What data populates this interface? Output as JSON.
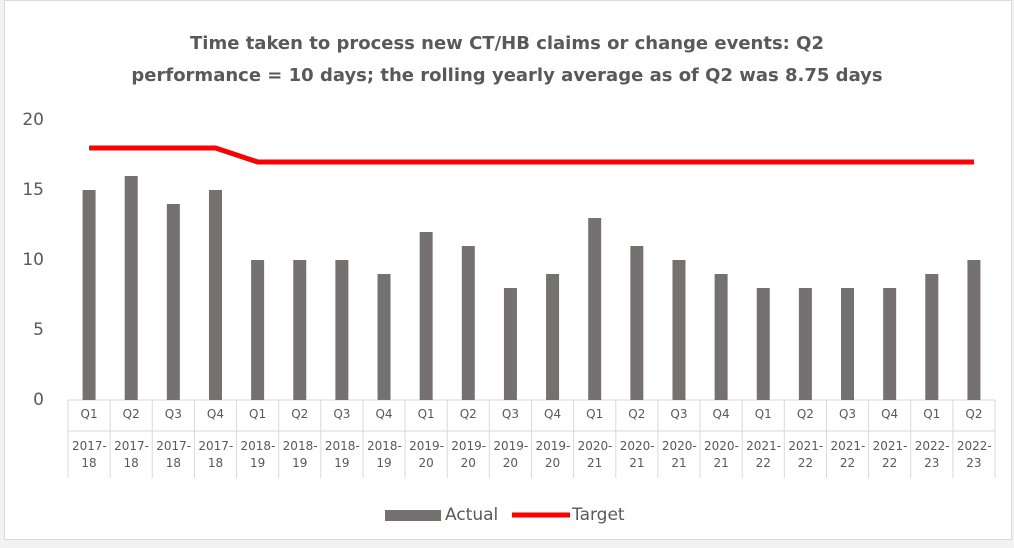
{
  "chart_data": {
    "type": "bar",
    "title": "Time taken to process new CT/HB claims or change events: Q2\nperformance = 10 days; the rolling yearly average as of Q2 was 8.75 days",
    "categories": [
      "Q1",
      "Q2",
      "Q3",
      "Q4",
      "Q1",
      "Q2",
      "Q3",
      "Q4",
      "Q1",
      "Q2",
      "Q3",
      "Q4",
      "Q1",
      "Q2",
      "Q3",
      "Q4",
      "Q1",
      "Q2",
      "Q3",
      "Q4",
      "Q1",
      "Q2"
    ],
    "category_groups": [
      "2017-18",
      "2017-18",
      "2017-18",
      "2017-18",
      "2018-19",
      "2018-19",
      "2018-19",
      "2018-19",
      "2019-20",
      "2019-20",
      "2019-20",
      "2019-20",
      "2020-21",
      "2020-21",
      "2020-21",
      "2020-21",
      "2021-22",
      "2021-22",
      "2021-22",
      "2021-22",
      "2022-23",
      "2022-23"
    ],
    "series": [
      {
        "name": "Actual",
        "type": "bar",
        "color": "#767171",
        "values": [
          15,
          16,
          14,
          15,
          10,
          10,
          10,
          9,
          12,
          11,
          8,
          9,
          13,
          11,
          10,
          9,
          8,
          8,
          8,
          8,
          9,
          10
        ]
      },
      {
        "name": "Target",
        "type": "line",
        "color": "#ff0000",
        "values": [
          18,
          18,
          18,
          18,
          17,
          17,
          17,
          17,
          17,
          17,
          17,
          17,
          17,
          17,
          17,
          17,
          17,
          17,
          17,
          17,
          17,
          17
        ]
      }
    ],
    "ylim": [
      0,
      20
    ],
    "yticks": [
      0,
      5,
      10,
      15,
      20
    ],
    "grid": false,
    "legend": "bottom"
  }
}
